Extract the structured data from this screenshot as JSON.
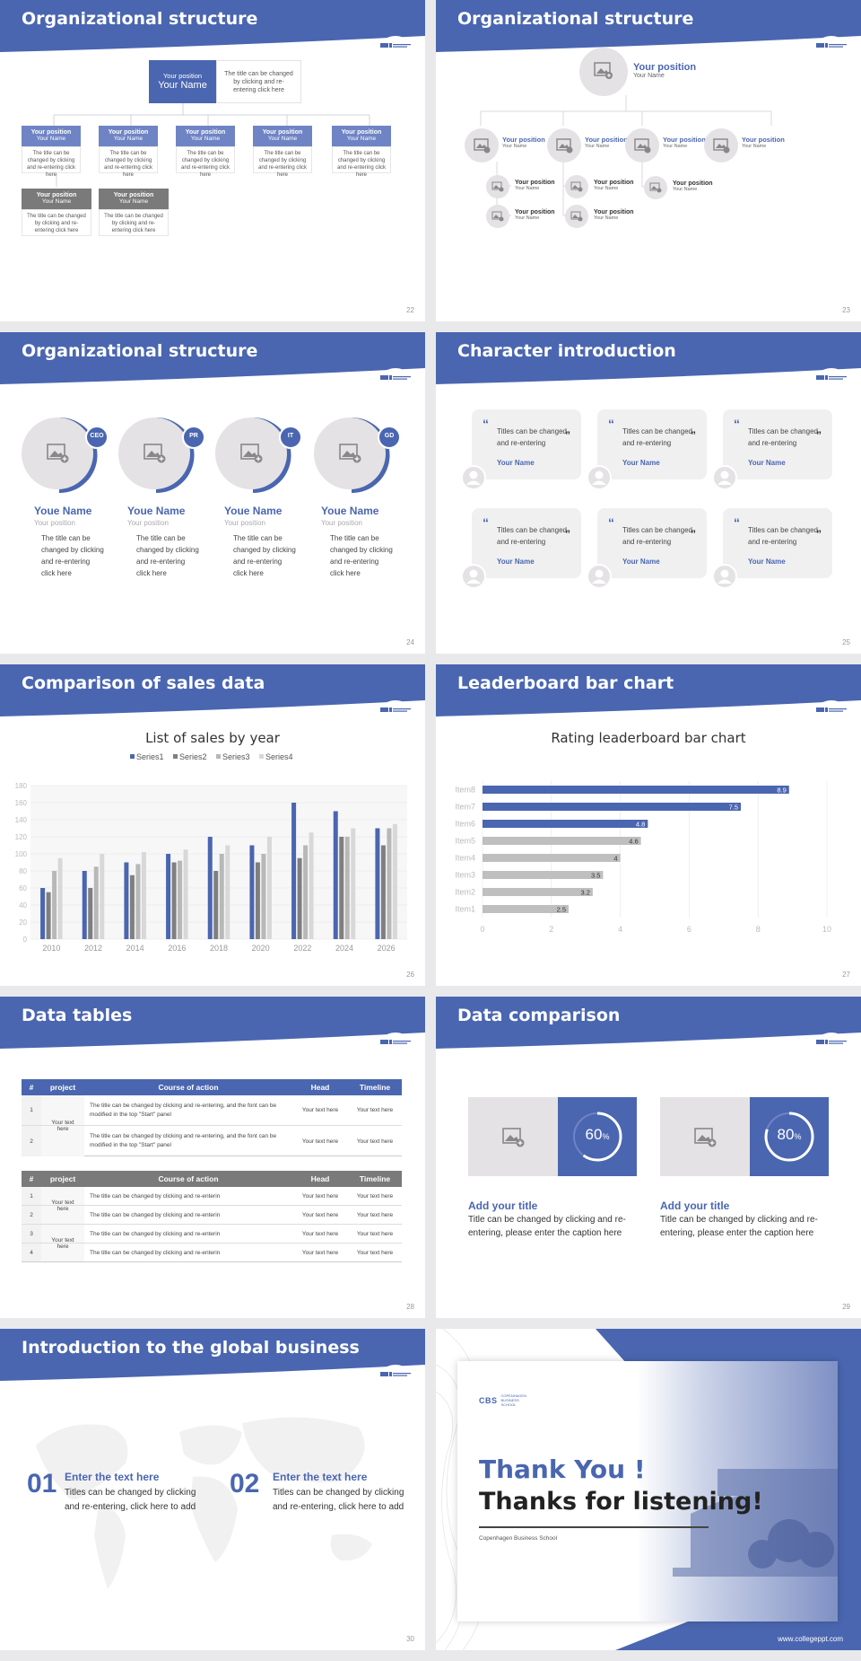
{
  "colors": {
    "accent": "#4a66b0",
    "gray": "#7a7a7a"
  },
  "logo": {
    "text": "CBS",
    "sub": "COPENHAGEN BUSINESS SCHOOL"
  },
  "s22": {
    "title": "Organizational structure",
    "page": "22",
    "top": {
      "position": "Your position",
      "name": "Your Name",
      "desc": "The title can be changed by clicking and re-entering click here"
    },
    "row1": [
      {
        "position": "Your position",
        "name": "Your Name",
        "desc": "The title can be changed by clicking and re-entering click here"
      },
      {
        "position": "Your position",
        "name": "Your Name",
        "desc": "The title can be changed by clicking and re-entering click here"
      },
      {
        "position": "Your position",
        "name": "Your Name",
        "desc": "The title can be changed by clicking and re-entering click here"
      },
      {
        "position": "Your position",
        "name": "Your Name",
        "desc": "The title can be changed by clicking and re-entering click here"
      },
      {
        "position": "Your position",
        "name": "Your Name",
        "desc": "The title can be changed by clicking and re-entering click here"
      }
    ],
    "row2": [
      {
        "position": "Your position",
        "name": "Your Name",
        "desc": "The title can be changed by clicking and re-entering click here"
      },
      {
        "position": "Your position",
        "name": "Your Name",
        "desc": "The title can be changed by clicking and re-entering click here"
      }
    ]
  },
  "s23": {
    "title": "Organizational structure",
    "page": "23",
    "top": {
      "position": "Your position",
      "name": "Your Name"
    },
    "mid": [
      {
        "position": "Your position",
        "name": "Your Name"
      },
      {
        "position": "Your position",
        "name": "Your Name"
      },
      {
        "position": "Your position",
        "name": "Your Name"
      },
      {
        "position": "Your position",
        "name": "Your Name"
      }
    ],
    "sub": [
      {
        "position": "Your position",
        "name": "Your Name"
      },
      {
        "position": "Your position",
        "name": "Your Name"
      },
      {
        "position": "Your position",
        "name": "Your Name"
      },
      {
        "position": "Your position",
        "name": "Your Name"
      },
      {
        "position": "Your position",
        "name": "Your Name"
      }
    ]
  },
  "s24": {
    "title": "Organizational structure",
    "page": "24",
    "people": [
      {
        "badge": "CEO",
        "name": "Youe Name",
        "position": "Your position",
        "desc": "The title can be changed by clicking and re-entering click here"
      },
      {
        "badge": "PR",
        "name": "Youe Name",
        "position": "Your position",
        "desc": "The title can be changed by clicking and re-entering click here"
      },
      {
        "badge": "IT",
        "name": "Youe Name",
        "position": "Your position",
        "desc": "The title can be changed by clicking and re-entering click here"
      },
      {
        "badge": "GD",
        "name": "Youe Name",
        "position": "Your position",
        "desc": "The title can be changed by clicking and re-entering click here"
      }
    ]
  },
  "s25": {
    "title": "Character introduction",
    "page": "25",
    "cards": [
      {
        "text": "Titles can be changed and re-entering",
        "name": "Your Name"
      },
      {
        "text": "Titles can be changed and re-entering",
        "name": "Your Name"
      },
      {
        "text": "Titles can be changed and re-entering",
        "name": "Your Name"
      },
      {
        "text": "Titles can be changed and re-entering",
        "name": "Your Name"
      },
      {
        "text": "Titles can be changed and re-entering",
        "name": "Your Name"
      },
      {
        "text": "Titles can be changed and re-entering",
        "name": "Your Name"
      }
    ]
  },
  "s26": {
    "title": "Comparison of sales data",
    "page": "26"
  },
  "s27": {
    "title": "Leaderboard bar chart",
    "page": "27"
  },
  "chart_data": [
    {
      "type": "bar",
      "title": "List of sales by year",
      "categories": [
        "2010",
        "2012",
        "2014",
        "2016",
        "2018",
        "2020",
        "2022",
        "2024",
        "2026"
      ],
      "series": [
        {
          "name": "Series1",
          "color": "#4a66b0",
          "values": [
            60,
            80,
            90,
            100,
            120,
            110,
            160,
            150,
            130
          ]
        },
        {
          "name": "Series2",
          "color": "#7f7f7f",
          "values": [
            55,
            60,
            75,
            90,
            80,
            90,
            95,
            120,
            110
          ]
        },
        {
          "name": "Series3",
          "color": "#b8b8b8",
          "values": [
            80,
            85,
            88,
            92,
            100,
            100,
            110,
            120,
            130
          ]
        },
        {
          "name": "Series4",
          "color": "#d8d8d8",
          "values": [
            95,
            100,
            102,
            105,
            110,
            120,
            125,
            130,
            135
          ]
        }
      ],
      "ylim": [
        0,
        180
      ],
      "yticks": [
        "0",
        "20",
        "40",
        "60",
        "80",
        "100",
        "120",
        "140",
        "160",
        "180"
      ],
      "legend": "top"
    },
    {
      "type": "bar",
      "orientation": "horizontal",
      "title": "Rating leaderboard bar chart",
      "categories": [
        "Item8",
        "Item7",
        "Item6",
        "Item5",
        "Item4",
        "Item3",
        "Item2",
        "Item1"
      ],
      "values": [
        8.9,
        7.5,
        4.8,
        4.6,
        4,
        3.5,
        3.2,
        2.5
      ],
      "labels": [
        "8.9",
        "7.5",
        "4.8",
        "4.6",
        "4",
        "3.5",
        "3.2",
        "2.5"
      ],
      "xlim": [
        0,
        10
      ],
      "xticks": [
        "0",
        "2",
        "4",
        "6",
        "8",
        "10"
      ]
    }
  ],
  "s28": {
    "title": "Data tables",
    "page": "28",
    "t1": {
      "head": [
        "#",
        "project",
        "Course of action",
        "Head",
        "Timeline"
      ],
      "project": "Your text here",
      "rows": [
        {
          "n": "1",
          "action": "The title can be changed by clicking and re-entering, and the font can be modified in the top \"Start\" panel",
          "head": "Your text here",
          "time": "Your text here"
        },
        {
          "n": "2",
          "action": "The title can be changed by clicking and re-entering, and the font can be modified in the top \"Start\" panel",
          "head": "Your text here",
          "time": "Your text here"
        }
      ]
    },
    "t2": {
      "head": [
        "#",
        "project",
        "Course of action",
        "Head",
        "Timeline"
      ],
      "project1": "Your text here",
      "project2": "Your text here",
      "rows": [
        {
          "n": "1",
          "action": "The title can be changed by clicking and re-enterin",
          "head": "Your text here",
          "time": "Your text here"
        },
        {
          "n": "2",
          "action": "The title can be changed by clicking and re-enterin",
          "head": "Your text here",
          "time": "Your text here"
        },
        {
          "n": "3",
          "action": "The title can be changed by clicking and re-enterin",
          "head": "Your text here",
          "time": "Your text here"
        },
        {
          "n": "4",
          "action": "The title can be changed by clicking and re-enterin",
          "head": "Your text here",
          "time": "Your text here"
        }
      ]
    }
  },
  "s29": {
    "title": "Data comparison",
    "page": "29",
    "items": [
      {
        "pct": 60,
        "num": "60",
        "unit": "%",
        "title": "Add your title",
        "desc": "Title can be changed by clicking and re-entering, please enter the caption here"
      },
      {
        "pct": 80,
        "num": "80",
        "unit": "%",
        "title": "Add your title",
        "desc": "Title can be changed by clicking and re-entering, please enter the caption here"
      }
    ]
  },
  "s30": {
    "title": "Introduction to the global business",
    "page": "30",
    "items": [
      {
        "num": "01",
        "head": "Enter the text here",
        "desc": "Titles can be changed by clicking and re-entering, click here to add"
      },
      {
        "num": "02",
        "head": "Enter the text here",
        "desc": "Titles can be changed by clicking and re-entering, click here to add"
      }
    ]
  },
  "s31": {
    "thanks1": "Thank You !",
    "thanks2": "Thanks for listening!",
    "school": "Copenhagen Business School",
    "url": "www.collegeppt.com"
  }
}
